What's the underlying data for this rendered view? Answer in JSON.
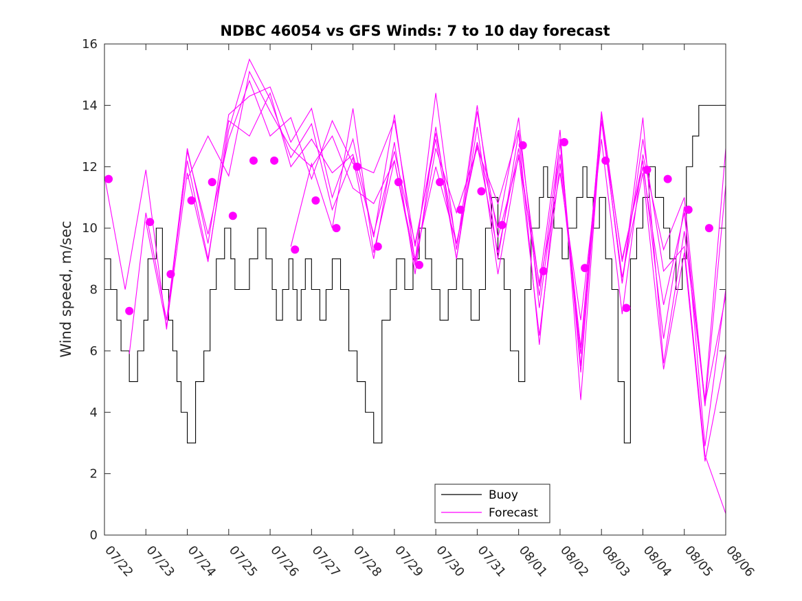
{
  "chart_data": {
    "type": "line",
    "title": "NDBC 46054 vs GFS Winds: 7 to 10 day forecast",
    "xlabel": "",
    "ylabel": "Wind speed, m/sec",
    "xlim": [
      0,
      15
    ],
    "ylim": [
      0,
      16
    ],
    "yticks": [
      0,
      2,
      4,
      6,
      8,
      10,
      12,
      14,
      16
    ],
    "xticks": [
      0,
      1,
      2,
      3,
      4,
      5,
      6,
      7,
      8,
      9,
      10,
      11,
      12,
      13,
      14,
      15
    ],
    "xtick_labels": [
      "07/22",
      "07/23",
      "07/24",
      "07/25",
      "07/26",
      "07/27",
      "07/28",
      "07/29",
      "07/30",
      "07/31",
      "08/01",
      "08/02",
      "08/03",
      "08/04",
      "08/05",
      "08/06"
    ],
    "x_unit_note": "x values are days offset from 07/22",
    "grid": false,
    "legend": {
      "position": "bottom-center",
      "entries": [
        "Buoy",
        "Forecast"
      ]
    },
    "colors": {
      "buoy": "#000000",
      "forecast": "#ff00ff"
    },
    "series": [
      {
        "name": "Buoy",
        "style": "step",
        "x": [
          0,
          0.15,
          0.3,
          0.4,
          0.6,
          0.8,
          0.95,
          1.05,
          1.25,
          1.4,
          1.55,
          1.65,
          1.75,
          1.85,
          2.0,
          2.2,
          2.4,
          2.55,
          2.7,
          2.9,
          3.05,
          3.15,
          3.3,
          3.5,
          3.7,
          3.9,
          4.05,
          4.15,
          4.3,
          4.45,
          4.55,
          4.65,
          4.75,
          4.85,
          5.0,
          5.2,
          5.35,
          5.5,
          5.7,
          5.9,
          6.1,
          6.3,
          6.5,
          6.7,
          6.9,
          7.05,
          7.25,
          7.45,
          7.6,
          7.75,
          7.9,
          8.1,
          8.3,
          8.5,
          8.65,
          8.85,
          9.05,
          9.2,
          9.35,
          9.5,
          9.65,
          9.8,
          10.0,
          10.15,
          10.3,
          10.5,
          10.6,
          10.7,
          10.85,
          11.05,
          11.2,
          11.4,
          11.55,
          11.65,
          11.8,
          11.95,
          12.1,
          12.25,
          12.4,
          12.55,
          12.7,
          12.85,
          13.0,
          13.15,
          13.3,
          13.5,
          13.65,
          13.8,
          13.95,
          14.05,
          14.2,
          14.35
        ],
        "values": [
          9,
          8,
          7,
          6,
          5,
          6,
          7,
          9,
          10,
          8,
          7,
          6,
          5,
          4,
          3,
          5,
          6,
          8,
          9,
          10,
          9,
          8,
          8,
          9,
          10,
          9,
          8,
          7,
          8,
          9,
          8,
          7,
          8,
          9,
          8,
          7,
          8,
          9,
          8,
          6,
          5,
          4,
          3,
          7,
          8,
          9,
          8,
          9,
          10,
          9,
          8,
          7,
          8,
          9,
          8,
          7,
          8,
          10,
          11,
          9,
          8,
          6,
          5,
          8,
          10,
          11,
          12,
          11,
          10,
          9,
          10,
          11,
          12,
          11,
          10,
          11,
          9,
          8,
          5,
          3,
          9,
          10,
          11,
          12,
          11,
          10,
          9,
          8,
          9,
          12,
          13,
          14
        ]
      },
      {
        "name": "Forecast",
        "style": "line",
        "x": [
          0,
          0.5,
          1,
          1.5,
          2,
          2.5,
          3,
          3.5,
          4,
          4.5,
          5,
          5.5,
          6,
          6.5,
          7,
          7.5,
          8,
          8.5,
          9,
          9.5,
          10,
          10.5,
          11,
          11.5,
          12,
          12.5,
          13,
          13.5,
          14,
          14.5,
          15
        ],
        "values": [
          11.7,
          8.0,
          11.9,
          6.7,
          12.6,
          9.5,
          13.7,
          14.3,
          14.6,
          12.8,
          13.9,
          11.0,
          12.9,
          9.7,
          13.7,
          8.9,
          14.4,
          9.3,
          14.0,
          9.0,
          13.1,
          6.2,
          12.9,
          5.5,
          13.7,
          8.2,
          13.6,
          5.6,
          9.9,
          4.4,
          12.6
        ]
      },
      {
        "name": "Forecast",
        "style": "line",
        "x": [
          0.6,
          1.0,
          1.5,
          2.0,
          2.5,
          3.0,
          3.5,
          4.0,
          4.5,
          5.0,
          5.5,
          6.0,
          6.5,
          7.0,
          7.5,
          8.0,
          8.5,
          9.0,
          9.5,
          10.0,
          10.5,
          11.0,
          11.5,
          12.0,
          12.5,
          13.0,
          13.5,
          14.0,
          14.5,
          15.0
        ],
        "values": [
          5.9,
          10.5,
          7.0,
          12.2,
          9.0,
          13.2,
          15.5,
          14.2,
          12.3,
          13.4,
          10.6,
          12.3,
          9.0,
          12.8,
          8.5,
          13.3,
          9.0,
          13.3,
          8.5,
          12.4,
          6.5,
          12.1,
          5.9,
          13.8,
          8.9,
          12.2,
          6.4,
          10.7,
          2.9,
          8.0
        ]
      },
      {
        "name": "Forecast",
        "style": "line",
        "x": [
          1.0,
          1.5,
          2.0,
          2.5,
          3.0,
          3.5,
          4.0,
          4.5,
          5.0,
          5.5,
          6.0,
          6.5,
          7.0,
          7.5,
          8.0,
          8.5,
          9.0,
          9.5,
          10.0,
          10.5,
          11.0,
          11.5,
          12.0,
          12.5,
          13.0,
          13.5,
          14.0,
          14.5,
          15.0
        ],
        "values": [
          10.2,
          6.8,
          11.8,
          8.9,
          13.5,
          13.0,
          14.4,
          12.0,
          12.9,
          11.8,
          12.4,
          9.8,
          12.5,
          9.5,
          12.9,
          9.0,
          13.8,
          9.7,
          12.3,
          8.2,
          13.2,
          4.4,
          13.5,
          8.4,
          11.8,
          5.4,
          9.2,
          2.4,
          5.9
        ]
      },
      {
        "name": "Forecast",
        "style": "line",
        "x": [
          1.5,
          2.0,
          2.5,
          3.0,
          3.5,
          4.0,
          4.5,
          5.0,
          5.5,
          6.0,
          6.5,
          7.0,
          7.5,
          8.0,
          8.5,
          9.0,
          9.5,
          10.0,
          10.5,
          11.0,
          11.5,
          12.0,
          12.5,
          13.0,
          13.5,
          14.0,
          14.5,
          15.0
        ],
        "values": [
          7.0,
          12.5,
          9.8,
          12.9,
          14.8,
          13.0,
          13.6,
          11.6,
          13.5,
          12.1,
          11.8,
          13.5,
          9.4,
          13.1,
          9.5,
          12.8,
          10.0,
          13.6,
          7.4,
          12.4,
          6.1,
          13.7,
          8.2,
          12.9,
          8.6,
          9.4,
          2.6,
          0.7
        ]
      },
      {
        "name": "Forecast",
        "style": "line",
        "x": [
          2.0,
          2.5,
          3.0,
          3.5,
          4.0,
          4.5,
          5.0,
          5.5,
          6.0,
          6.5,
          7.0,
          7.5,
          8.0,
          8.5,
          9.0,
          9.5,
          10.0,
          10.5,
          11.0,
          11.5,
          12.0,
          12.5,
          13.0,
          13.5,
          14.0,
          14.5,
          15.0
        ],
        "values": [
          11.6,
          13.0,
          11.7,
          15.1,
          13.8,
          12.6,
          12.0,
          13.0,
          11.3,
          10.8,
          12.2,
          8.8,
          12.6,
          10.5,
          12.6,
          10.8,
          13.2,
          8.1,
          11.8,
          7.0,
          12.9,
          7.2,
          12.4,
          9.3,
          11.0,
          4.3,
          7.8
        ]
      },
      {
        "name": "Forecast",
        "style": "line",
        "x": [
          4.5,
          5.0,
          5.5,
          6.0,
          6.5,
          7.0,
          7.5,
          8.0,
          8.5,
          9.0,
          9.5,
          10.0,
          10.5,
          11.0,
          11.5,
          12.0,
          12.5,
          13.0,
          13.5,
          14.0,
          14.5,
          15.0
        ],
        "values": [
          9.4,
          12.1,
          10.0,
          13.9,
          9.2,
          12.2,
          9.0,
          12.0,
          9.5,
          12.7,
          9.2,
          12.6,
          7.8,
          12.8,
          5.3,
          13.5,
          9.0,
          12.0,
          7.5,
          10.5,
          4.2,
          11.4
        ]
      },
      {
        "name": "Forecast",
        "style": "points",
        "x": [
          0.1,
          0.6,
          1.1,
          1.6,
          2.1,
          2.6,
          3.1,
          3.6,
          4.1,
          4.6,
          5.1,
          5.6,
          6.1,
          6.6,
          7.1,
          7.6,
          8.1,
          8.6,
          9.1,
          9.6,
          10.1,
          10.6,
          11.1,
          11.6,
          12.1,
          12.6,
          13.1,
          13.6,
          14.1,
          14.6
        ],
        "values": [
          11.6,
          7.3,
          10.2,
          8.5,
          10.9,
          11.5,
          10.4,
          12.2,
          12.2,
          9.3,
          10.9,
          10.0,
          12.0,
          9.4,
          11.5,
          8.8,
          11.5,
          10.6,
          11.2,
          10.1,
          12.7,
          8.6,
          12.8,
          8.7,
          12.2,
          7.4,
          11.9,
          11.6,
          10.6,
          10.0
        ]
      }
    ]
  }
}
